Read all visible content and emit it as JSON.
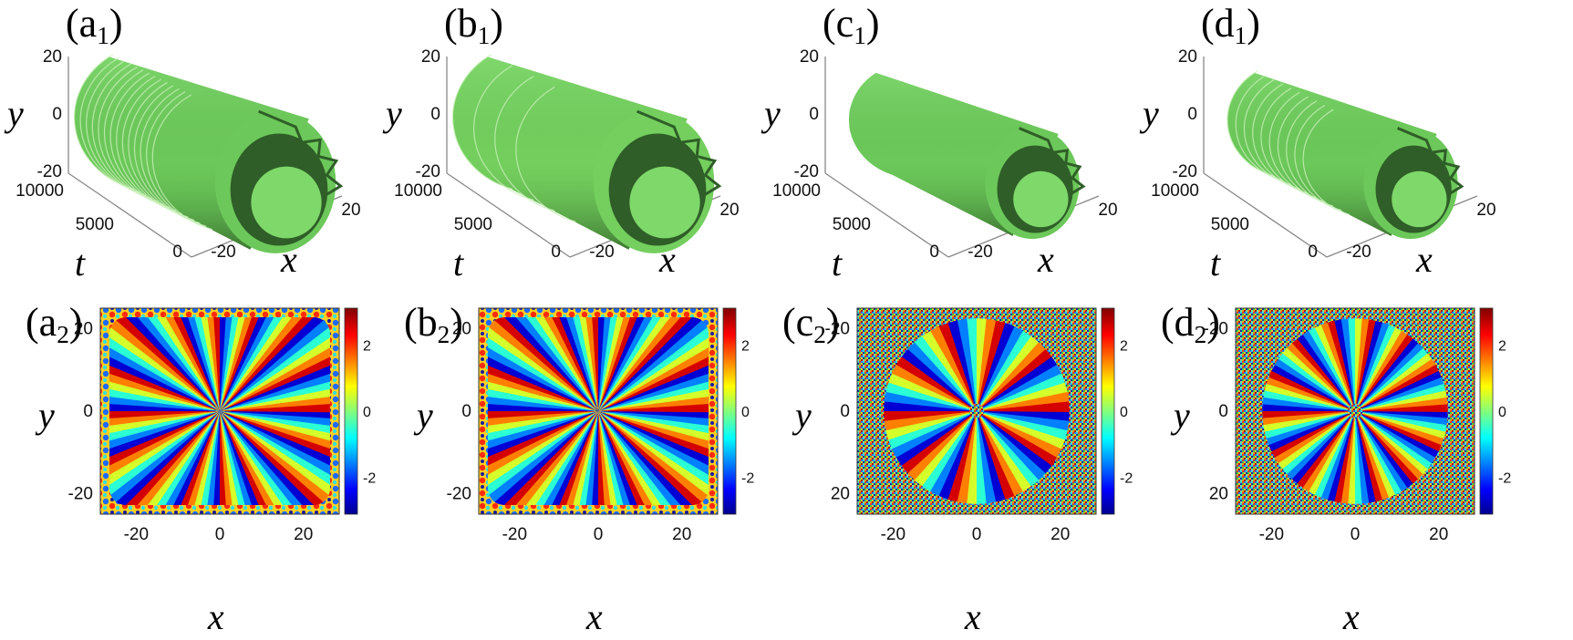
{
  "figure": {
    "panels": [
      {
        "id": "a1",
        "letter": "(a",
        "sub": "1",
        "close": ")",
        "type": "surface3d",
        "color": "#6cc85a",
        "shade": "#2f5e28",
        "rings": 14,
        "scale": 1.0,
        "y_label": "y",
        "t_label": "t",
        "x_label": "x",
        "y_ticks": [
          "20",
          "0",
          "-20"
        ],
        "t_ticks": [
          "10000",
          "5000",
          "0"
        ],
        "x_ticks": [
          "-20",
          "0",
          "20"
        ]
      },
      {
        "id": "b1",
        "letter": "(b",
        "sub": "1",
        "close": ")",
        "type": "surface3d",
        "color": "#74cf5e",
        "shade": "#2f5e28",
        "rings": 4,
        "scale": 1.0,
        "y_label": "y",
        "t_label": "t",
        "x_label": "x",
        "y_ticks": [
          "20",
          "0",
          "-20"
        ],
        "t_ticks": [
          "10000",
          "5000",
          "0"
        ],
        "x_ticks": [
          "-20",
          "0",
          "20"
        ]
      },
      {
        "id": "c1",
        "letter": "(c",
        "sub": "1",
        "close": ")",
        "type": "surface3d",
        "color": "#6cc85a",
        "shade": "#2f5e28",
        "rings": 0,
        "scale": 0.78,
        "y_label": "y",
        "t_label": "t",
        "x_label": "x",
        "y_ticks": [
          "20",
          "0",
          "-20"
        ],
        "t_ticks": [
          "10000",
          "5000",
          "0"
        ],
        "x_ticks": [
          "-20",
          "0",
          "20"
        ]
      },
      {
        "id": "d1",
        "letter": "(d",
        "sub": "1",
        "close": ")",
        "type": "surface3d",
        "color": "#6cc85a",
        "shade": "#2f5e28",
        "rings": 10,
        "scale": 0.78,
        "y_label": "y",
        "t_label": "t",
        "x_label": "x",
        "y_ticks": [
          "20",
          "0",
          "-20"
        ],
        "t_ticks": [
          "10000",
          "5000",
          "0"
        ],
        "x_ticks": [
          "-20",
          "0",
          "20"
        ]
      },
      {
        "id": "a2",
        "letter": "(a",
        "sub": "2",
        "close": ")",
        "type": "phase",
        "blades": 16,
        "disc": "square",
        "y_label": "y",
        "x_label": "x",
        "y_ticks": [
          "20",
          "0",
          "-20"
        ],
        "x_ticks": [
          "-20",
          "0",
          "20"
        ],
        "cbar_ticks": [
          "2",
          "0",
          "-2"
        ]
      },
      {
        "id": "b2",
        "letter": "(b",
        "sub": "2",
        "close": ")",
        "type": "phase",
        "blades": 16,
        "disc": "square",
        "y_label": "y",
        "x_label": "x",
        "y_ticks": [
          "20",
          "0",
          "-20"
        ],
        "x_ticks": [
          "-20",
          "0",
          "20"
        ],
        "cbar_ticks": [
          "2",
          "0",
          "-2"
        ]
      },
      {
        "id": "c2",
        "letter": "(c",
        "sub": "2",
        "close": ")",
        "type": "phase",
        "blades": 10,
        "disc": "noise",
        "radius": 0.6,
        "y_label": "y",
        "x_label": "x",
        "y_ticks": [
          "-20",
          "0",
          "20"
        ],
        "x_ticks": [
          "-20",
          "0",
          "20"
        ],
        "cbar_ticks": [
          "2",
          "0",
          "-2"
        ]
      },
      {
        "id": "d2",
        "letter": "(d",
        "sub": "2",
        "close": ")",
        "type": "phase",
        "blades": 14,
        "disc": "noise",
        "radius": 0.6,
        "y_label": "y",
        "x_label": "x",
        "y_ticks": [
          "-20",
          "0",
          "20"
        ],
        "x_ticks": [
          "-20",
          "0",
          "20"
        ],
        "cbar_ticks": [
          "2",
          "0",
          "-2"
        ]
      }
    ]
  }
}
